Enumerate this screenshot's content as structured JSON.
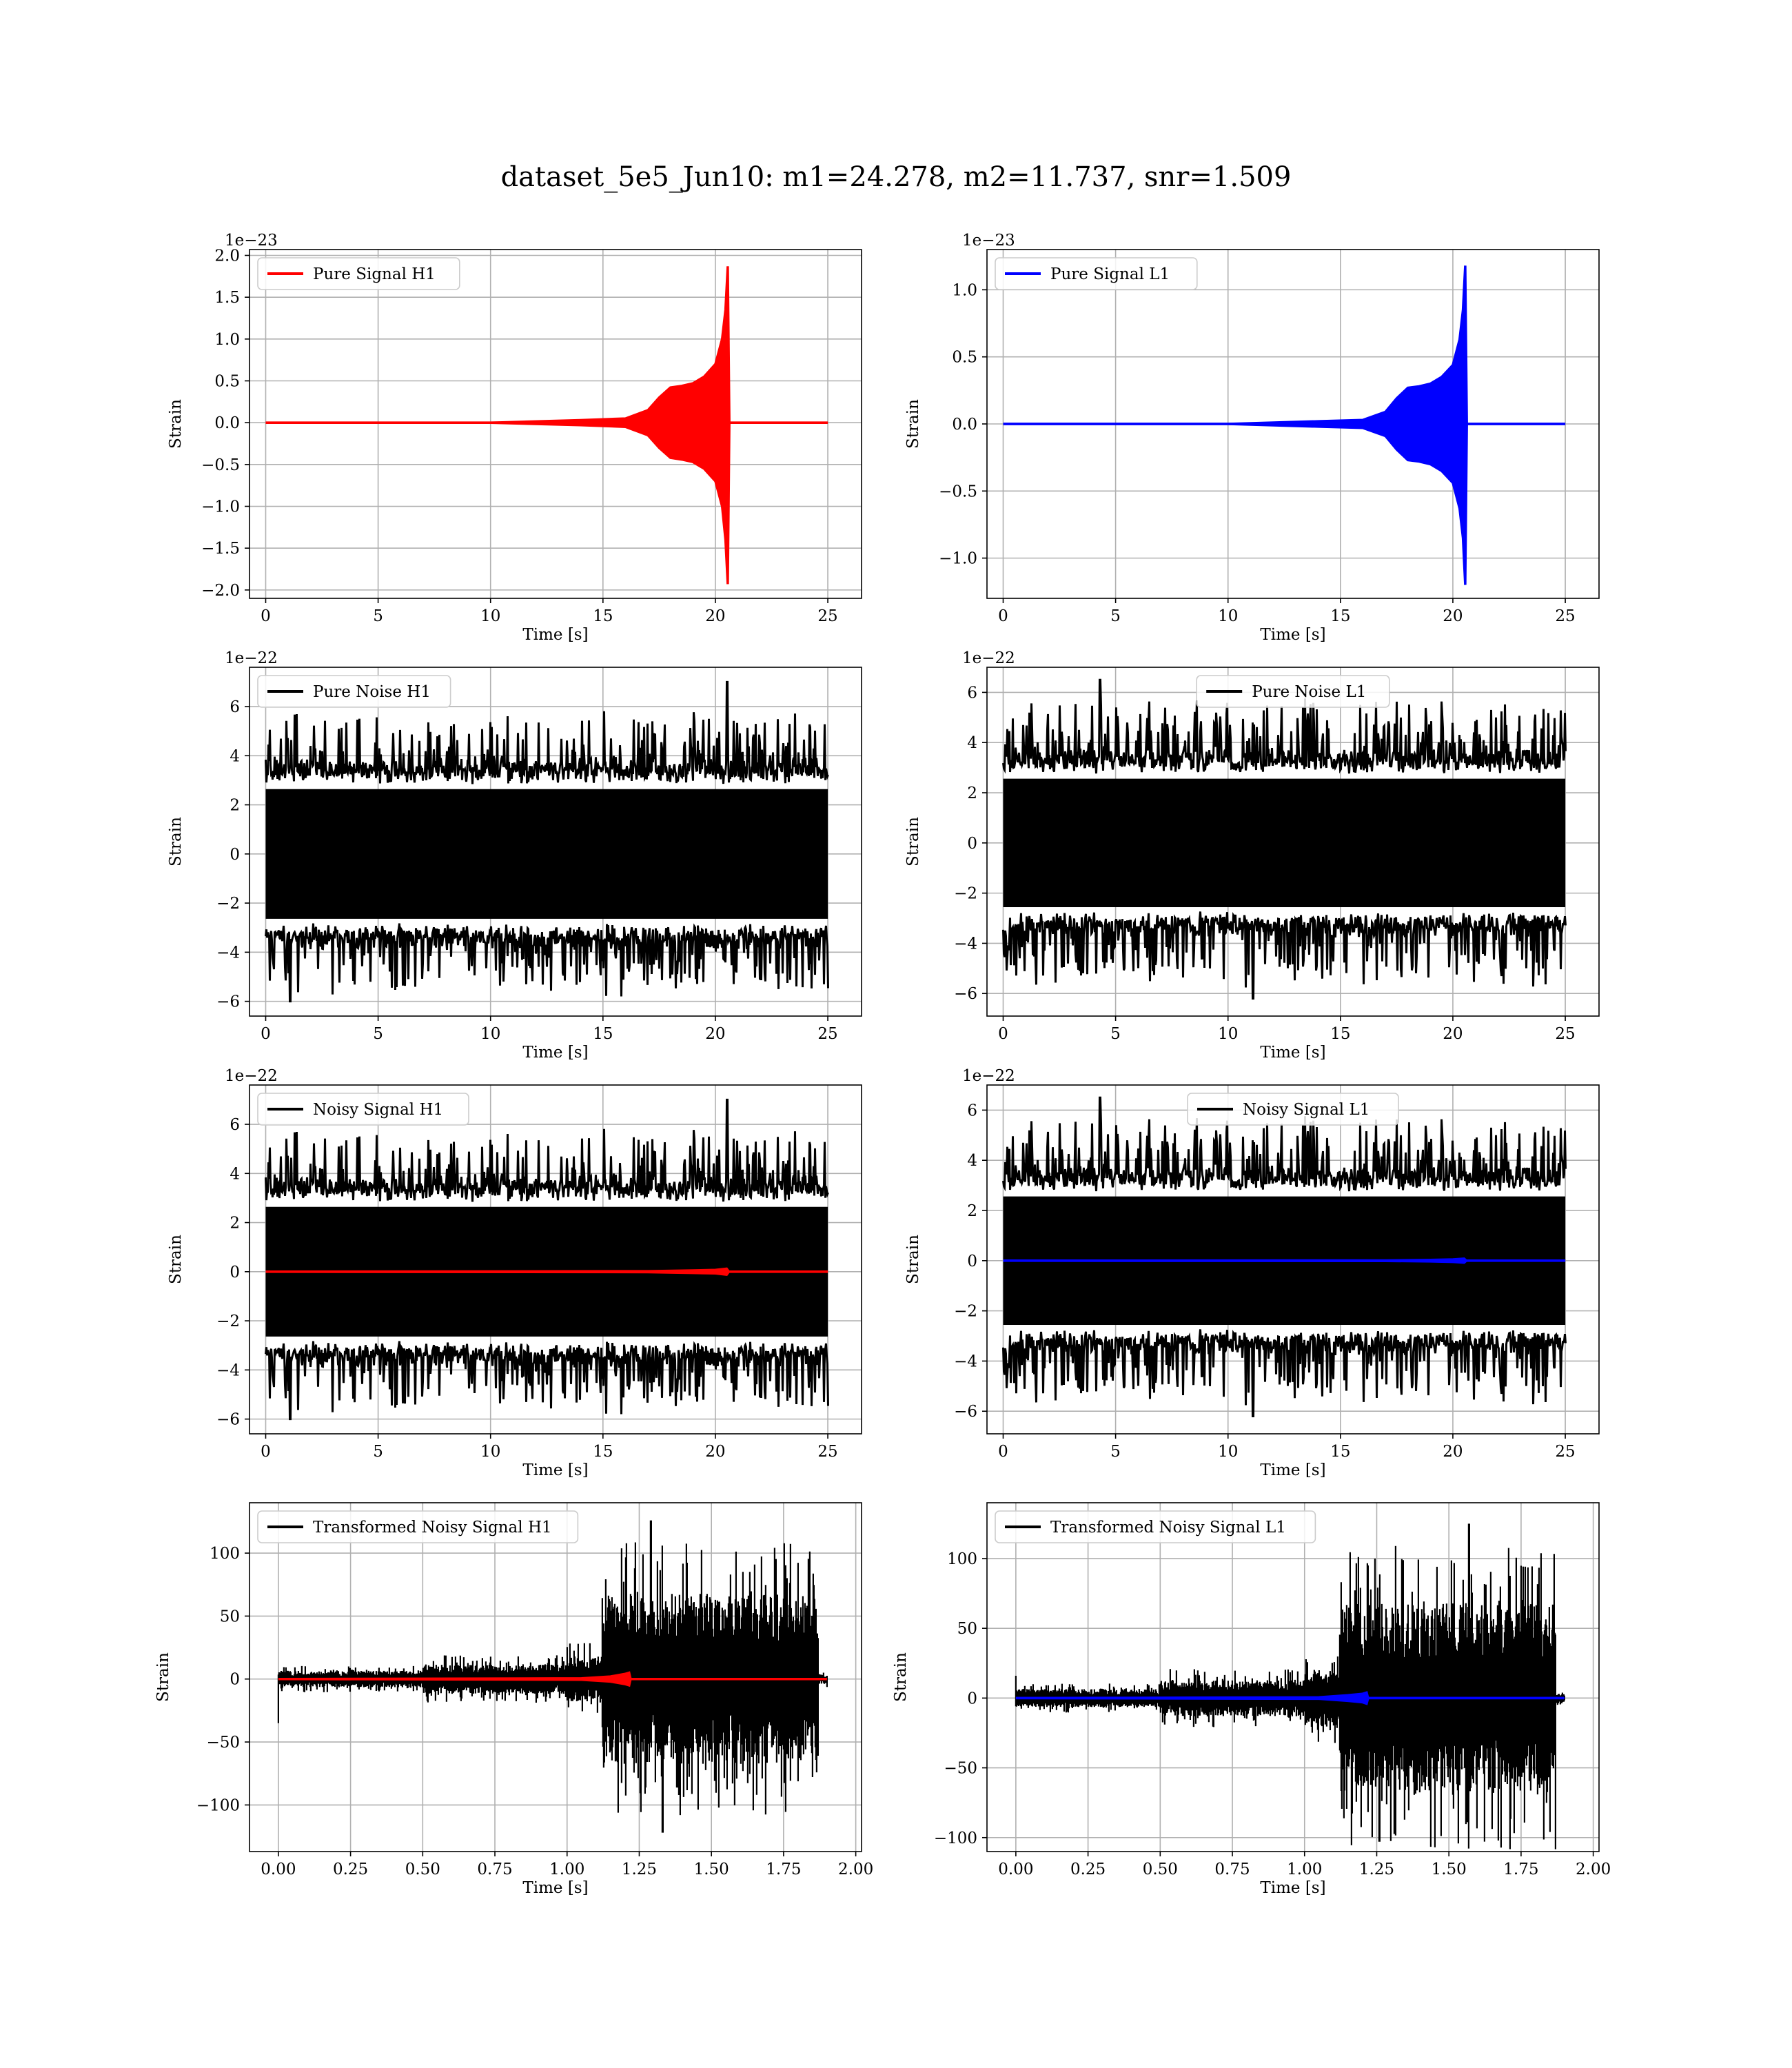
{
  "figure": {
    "suptitle": "dataset_5e5_Jun10: m1=24.278, m2=11.737, snr=1.509"
  },
  "colors": {
    "h1": "#ff0000",
    "l1": "#0000ff",
    "noise": "#000000",
    "grid": "#b0b0b0"
  },
  "chart_data": [
    {
      "id": "pure-signal-h1",
      "type": "line",
      "title": "",
      "xlabel": "Time [s]",
      "ylabel": "Strain",
      "offset_text": "1e−23",
      "xlim": [
        -0.72,
        26.5
      ],
      "ylim": [
        -2.1,
        2.07
      ],
      "xticks": [
        0,
        5,
        10,
        15,
        20,
        25
      ],
      "xtick_labels": [
        "0",
        "5",
        "10",
        "15",
        "20",
        "25"
      ],
      "yticks": [
        -2.0,
        -1.5,
        -1.0,
        -0.5,
        0.0,
        0.5,
        1.0,
        1.5,
        2.0
      ],
      "ytick_labels": [
        "−2.0",
        "−1.5",
        "−1.0",
        "−0.5",
        "0.0",
        "0.5",
        "1.0",
        "1.5",
        "2.0"
      ],
      "legend": {
        "location": "upper left",
        "entries": [
          {
            "label": "Pure Signal H1",
            "color": "#ff0000"
          }
        ]
      },
      "series": [
        {
          "name": "Pure Signal H1",
          "color": "#ff0000",
          "kind": "envelope",
          "x": [
            0,
            10,
            14,
            16,
            17,
            17.5,
            18,
            18.5,
            19,
            19.5,
            20,
            20.3,
            20.45,
            20.55,
            20.62,
            25
          ],
          "upper": [
            0,
            0,
            0.03,
            0.05,
            0.15,
            0.3,
            0.42,
            0.44,
            0.47,
            0.55,
            0.7,
            1.0,
            1.35,
            1.87,
            0,
            0
          ],
          "lower": [
            0,
            0,
            -0.03,
            -0.05,
            -0.15,
            -0.3,
            -0.42,
            -0.44,
            -0.47,
            -0.55,
            -0.7,
            -1.0,
            -1.4,
            -1.93,
            0,
            0
          ]
        }
      ]
    },
    {
      "id": "pure-signal-l1",
      "type": "line",
      "title": "",
      "xlabel": "Time [s]",
      "ylabel": "Strain",
      "offset_text": "1e−23",
      "xlim": [
        -0.72,
        26.5
      ],
      "ylim": [
        -1.3,
        1.3
      ],
      "xticks": [
        0,
        5,
        10,
        15,
        20,
        25
      ],
      "xtick_labels": [
        "0",
        "5",
        "10",
        "15",
        "20",
        "25"
      ],
      "yticks": [
        -1.0,
        -0.5,
        0.0,
        0.5,
        1.0
      ],
      "ytick_labels": [
        "−1.0",
        "−0.5",
        "0.0",
        "0.5",
        "1.0"
      ],
      "legend": {
        "location": "upper left",
        "entries": [
          {
            "label": "Pure Signal L1",
            "color": "#0000ff"
          }
        ]
      },
      "series": [
        {
          "name": "Pure Signal L1",
          "color": "#0000ff",
          "kind": "envelope",
          "x": [
            0,
            10,
            14,
            16,
            17,
            17.5,
            18,
            18.5,
            19,
            19.5,
            20,
            20.3,
            20.45,
            20.55,
            20.62,
            25
          ],
          "upper": [
            0,
            0,
            0.02,
            0.03,
            0.09,
            0.19,
            0.27,
            0.28,
            0.3,
            0.35,
            0.44,
            0.63,
            0.85,
            1.18,
            0,
            0
          ],
          "lower": [
            0,
            0,
            -0.02,
            -0.03,
            -0.09,
            -0.19,
            -0.27,
            -0.28,
            -0.3,
            -0.35,
            -0.44,
            -0.63,
            -0.85,
            -1.2,
            0,
            0
          ]
        }
      ]
    },
    {
      "id": "pure-noise-h1",
      "type": "line",
      "title": "",
      "xlabel": "Time [s]",
      "ylabel": "Strain",
      "offset_text": "1e−22",
      "xlim": [
        -0.72,
        26.5
      ],
      "ylim": [
        -6.6,
        7.6
      ],
      "xticks": [
        0,
        5,
        10,
        15,
        20,
        25
      ],
      "xtick_labels": [
        "0",
        "5",
        "10",
        "15",
        "20",
        "25"
      ],
      "yticks": [
        -6,
        -4,
        -2,
        0,
        2,
        4,
        6
      ],
      "ytick_labels": [
        "−6",
        "−4",
        "−2",
        "0",
        "2",
        "4",
        "6"
      ],
      "legend": {
        "location": "upper left",
        "entries": [
          {
            "label": "Pure Noise H1",
            "color": "#000000"
          }
        ]
      },
      "series": [
        {
          "name": "Pure Noise H1",
          "color": "#000000",
          "kind": "noise",
          "x_range": [
            0,
            25
          ],
          "seed": 11,
          "core": 3.3,
          "peak": 5.9,
          "max": 7.0,
          "min": -6.0,
          "max_at": 20.5,
          "min_at": 1.1
        }
      ]
    },
    {
      "id": "pure-noise-l1",
      "type": "line",
      "title": "",
      "xlabel": "Time [s]",
      "ylabel": "Strain",
      "offset_text": "1e−22",
      "xlim": [
        -0.72,
        26.5
      ],
      "ylim": [
        -6.9,
        7.0
      ],
      "xticks": [
        0,
        5,
        10,
        15,
        20,
        25
      ],
      "xtick_labels": [
        "0",
        "5",
        "10",
        "15",
        "20",
        "25"
      ],
      "yticks": [
        -6,
        -4,
        -2,
        0,
        2,
        4,
        6
      ],
      "ytick_labels": [
        "−6",
        "−4",
        "−2",
        "0",
        "2",
        "4",
        "6"
      ],
      "legend": {
        "location": "upper center",
        "entries": [
          {
            "label": "Pure Noise L1",
            "color": "#000000"
          }
        ]
      },
      "series": [
        {
          "name": "Pure Noise L1",
          "color": "#000000",
          "kind": "noise",
          "x_range": [
            0,
            25
          ],
          "seed": 23,
          "core": 3.2,
          "peak": 5.8,
          "max": 6.5,
          "min": -6.2,
          "max_at": 4.3,
          "min_at": 11.1
        }
      ]
    },
    {
      "id": "noisy-signal-h1",
      "type": "line",
      "title": "",
      "xlabel": "Time [s]",
      "ylabel": "Strain",
      "offset_text": "1e−22",
      "xlim": [
        -0.72,
        26.5
      ],
      "ylim": [
        -6.6,
        7.6
      ],
      "xticks": [
        0,
        5,
        10,
        15,
        20,
        25
      ],
      "xtick_labels": [
        "0",
        "5",
        "10",
        "15",
        "20",
        "25"
      ],
      "yticks": [
        -6,
        -4,
        -2,
        0,
        2,
        4,
        6
      ],
      "ytick_labels": [
        "−6",
        "−4",
        "−2",
        "0",
        "2",
        "4",
        "6"
      ],
      "legend": {
        "location": "upper left",
        "entries": [
          {
            "label": "Noisy Signal H1",
            "color": "#000000"
          }
        ]
      },
      "series": [
        {
          "name": "Noisy Signal H1",
          "color": "#000000",
          "kind": "noise",
          "x_range": [
            0,
            25
          ],
          "seed": 11,
          "core": 3.3,
          "peak": 5.9,
          "max": 7.0,
          "min": -6.0,
          "max_at": 20.5,
          "min_at": 1.1
        },
        {
          "color": "#ff0000",
          "kind": "envelope",
          "x": [
            0,
            17,
            19,
            20,
            20.5,
            20.6,
            25
          ],
          "upper": [
            0,
            0.02,
            0.05,
            0.07,
            0.12,
            0,
            0
          ],
          "lower": [
            0,
            -0.02,
            -0.05,
            -0.07,
            -0.12,
            0,
            0
          ]
        }
      ]
    },
    {
      "id": "noisy-signal-l1",
      "type": "line",
      "title": "",
      "xlabel": "Time [s]",
      "ylabel": "Strain",
      "offset_text": "1e−22",
      "xlim": [
        -0.72,
        26.5
      ],
      "ylim": [
        -6.9,
        7.0
      ],
      "xticks": [
        0,
        5,
        10,
        15,
        20,
        25
      ],
      "xtick_labels": [
        "0",
        "5",
        "10",
        "15",
        "20",
        "25"
      ],
      "yticks": [
        -6,
        -4,
        -2,
        0,
        2,
        4,
        6
      ],
      "ytick_labels": [
        "−6",
        "−4",
        "−2",
        "0",
        "2",
        "4",
        "6"
      ],
      "legend": {
        "location": "upper center",
        "entries": [
          {
            "label": "Noisy Signal L1",
            "color": "#000000"
          }
        ]
      },
      "series": [
        {
          "name": "Noisy Signal L1",
          "color": "#000000",
          "kind": "noise",
          "x_range": [
            0,
            25
          ],
          "seed": 23,
          "core": 3.2,
          "peak": 5.8,
          "max": 6.5,
          "min": -6.2,
          "max_at": 4.3,
          "min_at": 11.1
        },
        {
          "color": "#0000ff",
          "kind": "envelope",
          "x": [
            0,
            17,
            19,
            20,
            20.5,
            20.6,
            25
          ],
          "upper": [
            0,
            0.01,
            0.03,
            0.05,
            0.08,
            0,
            0
          ],
          "lower": [
            0,
            -0.01,
            -0.03,
            -0.05,
            -0.08,
            0,
            0
          ]
        }
      ]
    },
    {
      "id": "transformed-noisy-signal-h1",
      "type": "line",
      "title": "",
      "xlabel": "Time [s]",
      "ylabel": "Strain",
      "offset_text": "",
      "xlim": [
        -0.1,
        2.02
      ],
      "ylim": [
        -137,
        140
      ],
      "xticks": [
        0,
        0.25,
        0.5,
        0.75,
        1.0,
        1.25,
        1.5,
        1.75,
        2.0
      ],
      "xtick_labels": [
        "0.00",
        "0.25",
        "0.50",
        "0.75",
        "1.00",
        "1.25",
        "1.50",
        "1.75",
        "2.00"
      ],
      "yticks": [
        -100,
        -50,
        0,
        50,
        100
      ],
      "ytick_labels": [
        "−100",
        "−50",
        "0",
        "50",
        "100"
      ],
      "legend": {
        "location": "upper left",
        "entries": [
          {
            "label": "Transformed Noisy Signal H1",
            "color": "#000000"
          }
        ]
      },
      "series": [
        {
          "name": "Transformed Noisy Signal H1",
          "color": "#000000",
          "kind": "burst",
          "x_range": [
            0,
            1.9
          ],
          "seed": 41,
          "segments": [
            [
              0,
              0.5,
              5
            ],
            [
              0.5,
              1.0,
              9
            ],
            [
              1.0,
              1.12,
              14
            ],
            [
              1.12,
              1.87,
              52
            ],
            [
              1.87,
              1.9,
              3
            ]
          ],
          "max": 126,
          "min": -122,
          "max_at": 1.29,
          "min_at": 1.33,
          "start_spike": -35
        },
        {
          "color": "#ff0000",
          "kind": "envelope",
          "x": [
            0,
            1.05,
            1.15,
            1.2,
            1.215,
            1.22,
            1.9
          ],
          "upper": [
            0,
            0.5,
            2,
            4,
            5,
            0,
            0
          ],
          "lower": [
            0,
            -0.5,
            -2,
            -4,
            -5,
            0,
            0
          ]
        }
      ]
    },
    {
      "id": "transformed-noisy-signal-l1",
      "type": "line",
      "title": "",
      "xlabel": "Time [s]",
      "ylabel": "Strain",
      "offset_text": "",
      "xlim": [
        -0.1,
        2.02
      ],
      "ylim": [
        -110,
        140
      ],
      "xticks": [
        0,
        0.25,
        0.5,
        0.75,
        1.0,
        1.25,
        1.5,
        1.75,
        2.0
      ],
      "xtick_labels": [
        "0.00",
        "0.25",
        "0.50",
        "0.75",
        "1.00",
        "1.25",
        "1.50",
        "1.75",
        "2.00"
      ],
      "yticks": [
        -100,
        -50,
        0,
        50,
        100
      ],
      "ytick_labels": [
        "−100",
        "−50",
        "0",
        "50",
        "100"
      ],
      "legend": {
        "location": "upper left",
        "entries": [
          {
            "label": "Transformed Noisy Signal L1",
            "color": "#000000"
          }
        ]
      },
      "series": [
        {
          "name": "Transformed Noisy Signal L1",
          "color": "#000000",
          "kind": "burst",
          "x_range": [
            0,
            1.9
          ],
          "seed": 57,
          "segments": [
            [
              0,
              0.5,
              5
            ],
            [
              0.5,
              1.0,
              10
            ],
            [
              1.0,
              1.12,
              16
            ],
            [
              1.12,
              1.87,
              52
            ],
            [
              1.87,
              1.9,
              3
            ]
          ],
          "max": 125,
          "min": -103,
          "max_at": 1.57,
          "min_at": 1.26,
          "start_spike": 16
        },
        {
          "color": "#0000ff",
          "kind": "envelope",
          "x": [
            0,
            1.05,
            1.15,
            1.2,
            1.215,
            1.22,
            1.9
          ],
          "upper": [
            0,
            0.5,
            2,
            3,
            4,
            0,
            0
          ],
          "lower": [
            0,
            -0.5,
            -2,
            -3,
            -4,
            0,
            0
          ]
        }
      ]
    }
  ]
}
